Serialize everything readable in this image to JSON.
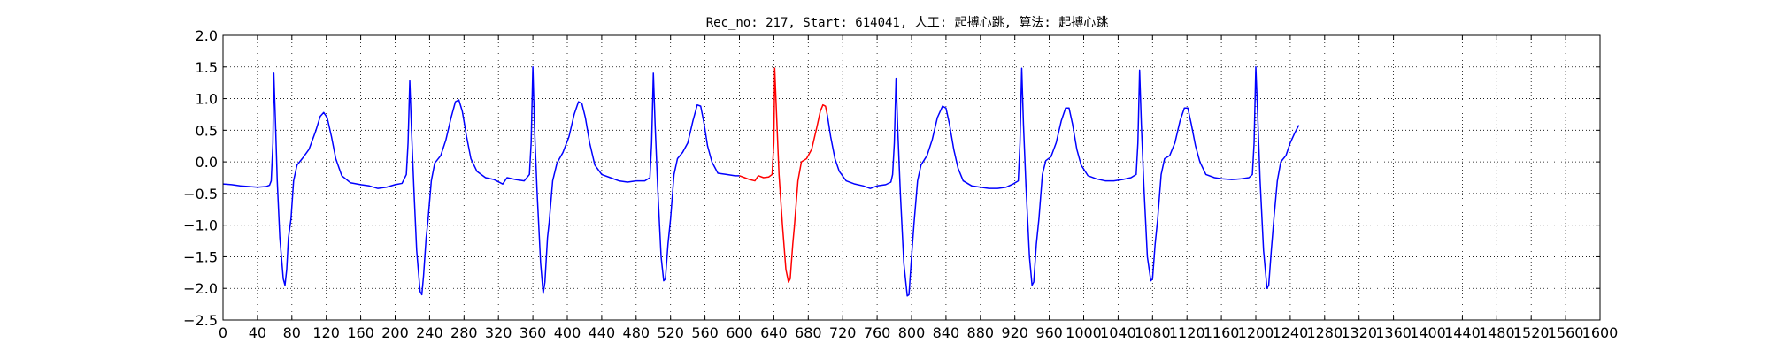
{
  "chart_data": {
    "type": "line",
    "title": "Rec_no: 217, Start: 614041, 人工: 起搏心跳, 算法: 起搏心跳",
    "xlabel": "",
    "ylabel": "",
    "xlim": [
      0,
      1600
    ],
    "ylim": [
      -2.5,
      2.0
    ],
    "grid": true,
    "grid_style": "dotted",
    "x_tick_values": [
      0,
      40,
      80,
      120,
      160,
      200,
      240,
      280,
      320,
      360,
      400,
      440,
      480,
      520,
      560,
      600,
      640,
      680,
      720,
      760,
      800,
      840,
      880,
      920,
      960,
      1000,
      1040,
      1080,
      1120,
      1160,
      1200,
      1240,
      1280,
      1320,
      1360,
      1400,
      1440,
      1480,
      1520,
      1560,
      1600
    ],
    "x_tick_labels": [
      "0",
      "40",
      "80",
      "120",
      "160",
      "200",
      "240",
      "280",
      "320",
      "360",
      "400",
      "440",
      "480",
      "520",
      "560",
      "600",
      "640",
      "680",
      "720",
      "760",
      "800",
      "840",
      "880",
      "920",
      "960",
      "1000",
      "1040",
      "1080",
      "1120",
      "1160",
      "1200",
      "1240",
      "1280",
      "1320",
      "1360",
      "1400",
      "1440",
      "1480",
      "1520",
      "1560",
      "1600"
    ],
    "y_tick_values": [
      2.0,
      1.5,
      1.0,
      0.5,
      0.0,
      -0.5,
      -1.0,
      -1.5,
      -2.0,
      -2.5
    ],
    "y_tick_labels": [
      "2.0",
      "1.5",
      "1.0",
      "0.5",
      "0.0",
      "−0.5",
      "−1.0",
      "−1.5",
      "−2.0",
      "−2.5"
    ],
    "series": [
      {
        "color": "#0000ff",
        "points": [
          [
            0,
            -0.35
          ],
          [
            10,
            -0.36
          ],
          [
            20,
            -0.38
          ],
          [
            30,
            -0.39
          ],
          [
            40,
            -0.4
          ],
          [
            50,
            -0.39
          ],
          [
            54,
            -0.37
          ],
          [
            56,
            -0.3
          ],
          [
            58,
            0.3
          ],
          [
            59,
            1.4
          ],
          [
            61,
            0.6
          ],
          [
            63,
            -0.3
          ],
          [
            66,
            -1.2
          ],
          [
            70,
            -1.85
          ],
          [
            72,
            -1.95
          ],
          [
            74,
            -1.7
          ],
          [
            76,
            -1.2
          ],
          [
            79,
            -0.9
          ],
          [
            82,
            -0.3
          ],
          [
            86,
            -0.05
          ],
          [
            92,
            0.05
          ],
          [
            100,
            0.2
          ],
          [
            108,
            0.5
          ],
          [
            113,
            0.72
          ],
          [
            117,
            0.78
          ],
          [
            121,
            0.7
          ],
          [
            126,
            0.4
          ],
          [
            131,
            0.05
          ],
          [
            138,
            -0.22
          ],
          [
            148,
            -0.33
          ],
          [
            160,
            -0.36
          ],
          [
            170,
            -0.38
          ],
          [
            180,
            -0.42
          ],
          [
            190,
            -0.4
          ],
          [
            200,
            -0.36
          ],
          [
            208,
            -0.34
          ],
          [
            213,
            -0.2
          ],
          [
            215,
            0.3
          ],
          [
            217,
            1.28
          ],
          [
            219,
            0.5
          ],
          [
            222,
            -0.5
          ],
          [
            225,
            -1.4
          ],
          [
            229,
            -2.05
          ],
          [
            231,
            -2.1
          ],
          [
            233,
            -1.8
          ],
          [
            236,
            -1.2
          ],
          [
            238,
            -0.95
          ],
          [
            242,
            -0.3
          ],
          [
            246,
            -0.02
          ],
          [
            253,
            0.1
          ],
          [
            259,
            0.35
          ],
          [
            265,
            0.7
          ],
          [
            270,
            0.95
          ],
          [
            274,
            0.98
          ],
          [
            278,
            0.8
          ],
          [
            283,
            0.4
          ],
          [
            288,
            0.05
          ],
          [
            295,
            -0.15
          ],
          [
            305,
            -0.25
          ],
          [
            315,
            -0.28
          ],
          [
            325,
            -0.35
          ],
          [
            330,
            -0.25
          ],
          [
            340,
            -0.28
          ],
          [
            350,
            -0.3
          ],
          [
            356,
            -0.2
          ],
          [
            358,
            0.3
          ],
          [
            360,
            1.5
          ],
          [
            362,
            0.5
          ],
          [
            365,
            -0.5
          ],
          [
            369,
            -1.6
          ],
          [
            372,
            -2.08
          ],
          [
            374,
            -1.9
          ],
          [
            377,
            -1.2
          ],
          [
            379,
            -0.95
          ],
          [
            383,
            -0.3
          ],
          [
            388,
            -0.02
          ],
          [
            395,
            0.15
          ],
          [
            402,
            0.4
          ],
          [
            408,
            0.75
          ],
          [
            413,
            0.95
          ],
          [
            417,
            0.92
          ],
          [
            421,
            0.7
          ],
          [
            426,
            0.3
          ],
          [
            432,
            -0.05
          ],
          [
            440,
            -0.2
          ],
          [
            450,
            -0.25
          ],
          [
            460,
            -0.3
          ],
          [
            470,
            -0.32
          ],
          [
            480,
            -0.3
          ],
          [
            490,
            -0.3
          ],
          [
            496,
            -0.25
          ],
          [
            498,
            0.3
          ],
          [
            500,
            1.4
          ],
          [
            502,
            0.6
          ],
          [
            505,
            -0.4
          ],
          [
            509,
            -1.5
          ],
          [
            512,
            -1.88
          ],
          [
            514,
            -1.85
          ],
          [
            517,
            -1.3
          ],
          [
            520,
            -0.9
          ],
          [
            524,
            -0.2
          ],
          [
            528,
            0.05
          ],
          [
            534,
            0.15
          ],
          [
            540,
            0.3
          ],
          [
            546,
            0.65
          ],
          [
            551,
            0.9
          ],
          [
            555,
            0.88
          ],
          [
            559,
            0.6
          ],
          [
            563,
            0.25
          ],
          [
            568,
            0.0
          ],
          [
            575,
            -0.18
          ],
          [
            585,
            -0.2
          ],
          [
            595,
            -0.22
          ],
          [
            600,
            -0.22
          ]
        ]
      },
      {
        "color": "#ff0000",
        "points": [
          [
            600,
            -0.22
          ],
          [
            606,
            -0.25
          ],
          [
            612,
            -0.28
          ],
          [
            618,
            -0.3
          ],
          [
            622,
            -0.22
          ],
          [
            628,
            -0.25
          ],
          [
            634,
            -0.24
          ],
          [
            638,
            -0.2
          ],
          [
            640,
            0.3
          ],
          [
            641,
            1.48
          ],
          [
            643,
            0.8
          ],
          [
            646,
            -0.2
          ],
          [
            650,
            -1.0
          ],
          [
            654,
            -1.7
          ],
          [
            657,
            -1.9
          ],
          [
            659,
            -1.85
          ],
          [
            662,
            -1.3
          ],
          [
            664,
            -1.0
          ],
          [
            668,
            -0.3
          ],
          [
            672,
            0.0
          ],
          [
            678,
            0.05
          ],
          [
            684,
            0.2
          ],
          [
            690,
            0.55
          ],
          [
            694,
            0.8
          ],
          [
            697,
            0.9
          ],
          [
            700,
            0.88
          ],
          [
            702,
            0.75
          ]
        ]
      },
      {
        "color": "#0000ff",
        "points": [
          [
            702,
            0.75
          ],
          [
            706,
            0.4
          ],
          [
            711,
            0.05
          ],
          [
            716,
            -0.15
          ],
          [
            724,
            -0.3
          ],
          [
            734,
            -0.35
          ],
          [
            744,
            -0.38
          ],
          [
            752,
            -0.42
          ],
          [
            760,
            -0.38
          ],
          [
            770,
            -0.36
          ],
          [
            776,
            -0.32
          ],
          [
            778,
            -0.2
          ],
          [
            780,
            0.3
          ],
          [
            782,
            1.32
          ],
          [
            784,
            0.5
          ],
          [
            787,
            -0.5
          ],
          [
            791,
            -1.6
          ],
          [
            795,
            -2.12
          ],
          [
            797,
            -2.1
          ],
          [
            800,
            -1.5
          ],
          [
            803,
            -0.95
          ],
          [
            807,
            -0.3
          ],
          [
            811,
            -0.05
          ],
          [
            818,
            0.1
          ],
          [
            824,
            0.35
          ],
          [
            830,
            0.7
          ],
          [
            836,
            0.88
          ],
          [
            840,
            0.85
          ],
          [
            844,
            0.6
          ],
          [
            849,
            0.2
          ],
          [
            854,
            -0.1
          ],
          [
            860,
            -0.3
          ],
          [
            870,
            -0.38
          ],
          [
            880,
            -0.4
          ],
          [
            890,
            -0.42
          ],
          [
            900,
            -0.42
          ],
          [
            910,
            -0.4
          ],
          [
            918,
            -0.35
          ],
          [
            924,
            -0.3
          ],
          [
            926,
            0.3
          ],
          [
            928,
            1.48
          ],
          [
            930,
            0.6
          ],
          [
            933,
            -0.4
          ],
          [
            937,
            -1.5
          ],
          [
            940,
            -1.95
          ],
          [
            942,
            -1.9
          ],
          [
            945,
            -1.3
          ],
          [
            948,
            -0.9
          ],
          [
            952,
            -0.2
          ],
          [
            956,
            0.02
          ],
          [
            962,
            0.08
          ],
          [
            968,
            0.3
          ],
          [
            974,
            0.65
          ],
          [
            979,
            0.85
          ],
          [
            983,
            0.85
          ],
          [
            987,
            0.6
          ],
          [
            992,
            0.2
          ],
          [
            997,
            -0.05
          ],
          [
            1005,
            -0.22
          ],
          [
            1015,
            -0.27
          ],
          [
            1025,
            -0.3
          ],
          [
            1035,
            -0.3
          ],
          [
            1045,
            -0.28
          ],
          [
            1055,
            -0.25
          ],
          [
            1061,
            -0.2
          ],
          [
            1063,
            0.3
          ],
          [
            1065,
            1.45
          ],
          [
            1067,
            0.6
          ],
          [
            1070,
            -0.4
          ],
          [
            1074,
            -1.5
          ],
          [
            1078,
            -1.88
          ],
          [
            1080,
            -1.85
          ],
          [
            1083,
            -1.3
          ],
          [
            1086,
            -0.9
          ],
          [
            1090,
            -0.2
          ],
          [
            1094,
            0.05
          ],
          [
            1100,
            0.1
          ],
          [
            1106,
            0.3
          ],
          [
            1112,
            0.65
          ],
          [
            1117,
            0.85
          ],
          [
            1121,
            0.85
          ],
          [
            1125,
            0.6
          ],
          [
            1130,
            0.25
          ],
          [
            1135,
            0.0
          ],
          [
            1142,
            -0.2
          ],
          [
            1152,
            -0.25
          ],
          [
            1162,
            -0.27
          ],
          [
            1172,
            -0.28
          ],
          [
            1182,
            -0.27
          ],
          [
            1192,
            -0.25
          ],
          [
            1196,
            -0.2
          ],
          [
            1198,
            0.3
          ],
          [
            1200,
            1.5
          ],
          [
            1202,
            0.8
          ],
          [
            1205,
            -0.3
          ],
          [
            1209,
            -1.4
          ],
          [
            1213,
            -2.0
          ],
          [
            1215,
            -1.95
          ],
          [
            1218,
            -1.4
          ],
          [
            1221,
            -0.9
          ],
          [
            1225,
            -0.3
          ],
          [
            1229,
            0.0
          ],
          [
            1235,
            0.1
          ],
          [
            1240,
            0.3
          ],
          [
            1245,
            0.45
          ],
          [
            1250,
            0.58
          ]
        ]
      }
    ]
  }
}
